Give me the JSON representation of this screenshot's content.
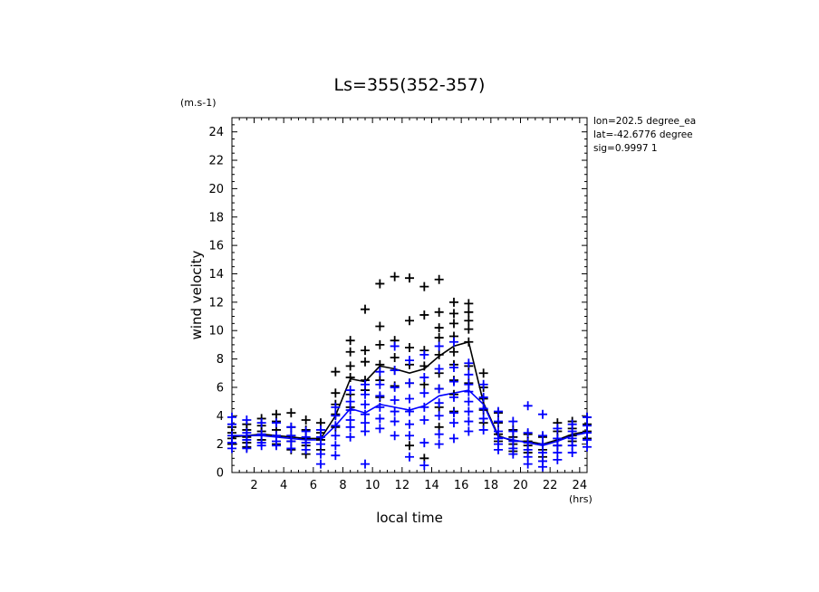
{
  "chart_data": {
    "type": "scatter",
    "title": "Ls=355(352-357)",
    "xlabel": "local time",
    "ylabel": "wind velocity",
    "x_unit": "(hrs)",
    "y_unit": "(m.s-1)",
    "xlim": [
      0.5,
      24.5
    ],
    "ylim": [
      0,
      25
    ],
    "x_ticks": [
      2,
      4,
      6,
      8,
      10,
      12,
      14,
      16,
      18,
      20,
      22,
      24
    ],
    "y_ticks": [
      0,
      2,
      4,
      6,
      8,
      10,
      12,
      14,
      16,
      18,
      20,
      22,
      24
    ],
    "info_lines": [
      "lon=202.5 degree_ea",
      "lat=-42.6776 degree",
      "sig=0.9997 1"
    ],
    "series": [
      {
        "color": "#000000",
        "role": "scatter",
        "points": [
          [
            0.5,
            3.2
          ],
          [
            0.5,
            2.8
          ],
          [
            0.5,
            2.4
          ],
          [
            0.5,
            2.0
          ],
          [
            1.5,
            3.4
          ],
          [
            1.5,
            3.0
          ],
          [
            1.5,
            2.5
          ],
          [
            1.5,
            2.1
          ],
          [
            1.5,
            1.8
          ],
          [
            2.5,
            3.8
          ],
          [
            2.5,
            3.3
          ],
          [
            2.5,
            2.9
          ],
          [
            2.5,
            2.3
          ],
          [
            3.5,
            4.1
          ],
          [
            3.5,
            3.6
          ],
          [
            3.5,
            3.0
          ],
          [
            3.5,
            2.6
          ],
          [
            3.5,
            2.0
          ],
          [
            4.5,
            4.2
          ],
          [
            4.5,
            3.2
          ],
          [
            4.5,
            2.6
          ],
          [
            4.5,
            2.2
          ],
          [
            4.5,
            1.6
          ],
          [
            5.5,
            3.7
          ],
          [
            5.5,
            3.0
          ],
          [
            5.5,
            2.4
          ],
          [
            5.5,
            1.9
          ],
          [
            5.5,
            1.3
          ],
          [
            6.5,
            3.5
          ],
          [
            6.5,
            2.8
          ],
          [
            6.5,
            2.3
          ],
          [
            6.5,
            1.6
          ],
          [
            7.5,
            7.1
          ],
          [
            7.5,
            5.6
          ],
          [
            7.5,
            4.8
          ],
          [
            7.5,
            4.1
          ],
          [
            7.5,
            3.2
          ],
          [
            8.5,
            9.3
          ],
          [
            8.5,
            8.5
          ],
          [
            8.5,
            7.5
          ],
          [
            8.5,
            6.7
          ],
          [
            8.5,
            5.5
          ],
          [
            8.5,
            4.6
          ],
          [
            9.5,
            11.5
          ],
          [
            9.5,
            8.6
          ],
          [
            9.5,
            7.8
          ],
          [
            9.5,
            6.5
          ],
          [
            9.5,
            5.8
          ],
          [
            10.5,
            13.3
          ],
          [
            10.5,
            10.3
          ],
          [
            10.5,
            9.0
          ],
          [
            10.5,
            7.6
          ],
          [
            10.5,
            6.5
          ],
          [
            10.5,
            5.3
          ],
          [
            11.5,
            13.8
          ],
          [
            11.5,
            9.3
          ],
          [
            11.5,
            8.1
          ],
          [
            11.5,
            7.2
          ],
          [
            11.5,
            6.1
          ],
          [
            12.5,
            13.7
          ],
          [
            12.5,
            10.7
          ],
          [
            12.5,
            8.8
          ],
          [
            12.5,
            7.6
          ],
          [
            12.5,
            6.3
          ],
          [
            12.5,
            1.9
          ],
          [
            13.5,
            13.1
          ],
          [
            13.5,
            11.1
          ],
          [
            13.5,
            8.6
          ],
          [
            13.5,
            7.5
          ],
          [
            13.5,
            6.2
          ],
          [
            13.5,
            1.0
          ],
          [
            14.5,
            13.6
          ],
          [
            14.5,
            11.3
          ],
          [
            14.5,
            10.2
          ],
          [
            14.5,
            9.5
          ],
          [
            14.5,
            8.3
          ],
          [
            14.5,
            7.0
          ],
          [
            14.5,
            5.9
          ],
          [
            14.5,
            4.6
          ],
          [
            14.5,
            3.2
          ],
          [
            15.5,
            12.0
          ],
          [
            15.5,
            11.2
          ],
          [
            15.5,
            10.5
          ],
          [
            15.5,
            9.6
          ],
          [
            15.5,
            8.5
          ],
          [
            15.5,
            7.6
          ],
          [
            15.5,
            6.5
          ],
          [
            15.5,
            5.5
          ],
          [
            15.5,
            4.3
          ],
          [
            16.5,
            11.9
          ],
          [
            16.5,
            11.3
          ],
          [
            16.5,
            10.7
          ],
          [
            16.5,
            10.1
          ],
          [
            16.5,
            9.2
          ],
          [
            16.5,
            7.5
          ],
          [
            16.5,
            6.3
          ],
          [
            17.5,
            7.0
          ],
          [
            17.5,
            6.0
          ],
          [
            17.5,
            5.2
          ],
          [
            17.5,
            4.4
          ],
          [
            17.5,
            3.5
          ],
          [
            18.5,
            4.2
          ],
          [
            18.5,
            3.5
          ],
          [
            18.5,
            2.7
          ],
          [
            18.5,
            2.2
          ],
          [
            19.5,
            3.0
          ],
          [
            19.5,
            2.5
          ],
          [
            19.5,
            2.0
          ],
          [
            19.5,
            1.5
          ],
          [
            20.5,
            2.7
          ],
          [
            20.5,
            2.2
          ],
          [
            20.5,
            1.9
          ],
          [
            20.5,
            1.4
          ],
          [
            21.5,
            2.5
          ],
          [
            21.5,
            2.0
          ],
          [
            21.5,
            1.6
          ],
          [
            21.5,
            1.1
          ],
          [
            22.5,
            3.5
          ],
          [
            22.5,
            2.9
          ],
          [
            22.5,
            2.4
          ],
          [
            22.5,
            1.9
          ],
          [
            23.5,
            3.6
          ],
          [
            23.5,
            3.1
          ],
          [
            23.5,
            2.6
          ],
          [
            23.5,
            2.2
          ],
          [
            24.5,
            3.9
          ],
          [
            24.5,
            3.4
          ],
          [
            24.5,
            2.9
          ],
          [
            24.5,
            2.4
          ]
        ]
      },
      {
        "color": "#0000ff",
        "role": "scatter",
        "points": [
          [
            0.5,
            3.9
          ],
          [
            0.5,
            3.4
          ],
          [
            0.5,
            2.6
          ],
          [
            0.5,
            2.1
          ],
          [
            0.5,
            1.7
          ],
          [
            1.5,
            3.7
          ],
          [
            1.5,
            2.8
          ],
          [
            1.5,
            2.3
          ],
          [
            1.5,
            1.7
          ],
          [
            2.5,
            3.5
          ],
          [
            2.5,
            2.7
          ],
          [
            2.5,
            2.1
          ],
          [
            2.5,
            1.9
          ],
          [
            3.5,
            3.5
          ],
          [
            3.5,
            2.6
          ],
          [
            3.5,
            2.2
          ],
          [
            3.5,
            1.9
          ],
          [
            4.5,
            3.2
          ],
          [
            4.5,
            2.6
          ],
          [
            4.5,
            2.2
          ],
          [
            4.5,
            1.7
          ],
          [
            5.5,
            2.9
          ],
          [
            5.5,
            2.5
          ],
          [
            5.5,
            2.1
          ],
          [
            5.5,
            1.6
          ],
          [
            6.5,
            3.0
          ],
          [
            6.5,
            2.5
          ],
          [
            6.5,
            2.0
          ],
          [
            6.5,
            1.3
          ],
          [
            6.5,
            0.6
          ],
          [
            7.5,
            4.6
          ],
          [
            7.5,
            4.0
          ],
          [
            7.5,
            3.3
          ],
          [
            7.5,
            2.6
          ],
          [
            7.5,
            1.9
          ],
          [
            7.5,
            1.2
          ],
          [
            8.5,
            5.8
          ],
          [
            8.5,
            5.0
          ],
          [
            8.5,
            4.4
          ],
          [
            8.5,
            3.7
          ],
          [
            8.5,
            3.2
          ],
          [
            8.5,
            2.5
          ],
          [
            9.5,
            6.2
          ],
          [
            9.5,
            5.5
          ],
          [
            9.5,
            4.8
          ],
          [
            9.5,
            4.1
          ],
          [
            9.5,
            3.5
          ],
          [
            9.5,
            2.9
          ],
          [
            9.5,
            0.6
          ],
          [
            10.5,
            7.1
          ],
          [
            10.5,
            6.2
          ],
          [
            10.5,
            5.4
          ],
          [
            10.5,
            4.6
          ],
          [
            10.5,
            3.8
          ],
          [
            10.5,
            3.1
          ],
          [
            11.5,
            8.9
          ],
          [
            11.5,
            7.2
          ],
          [
            11.5,
            6.0
          ],
          [
            11.5,
            5.1
          ],
          [
            11.5,
            4.3
          ],
          [
            11.5,
            3.6
          ],
          [
            11.5,
            2.6
          ],
          [
            12.5,
            7.9
          ],
          [
            12.5,
            6.3
          ],
          [
            12.5,
            5.2
          ],
          [
            12.5,
            4.3
          ],
          [
            12.5,
            3.4
          ],
          [
            12.5,
            2.6
          ],
          [
            12.5,
            1.1
          ],
          [
            13.5,
            8.3
          ],
          [
            13.5,
            6.7
          ],
          [
            13.5,
            5.6
          ],
          [
            13.5,
            4.6
          ],
          [
            13.5,
            3.7
          ],
          [
            13.5,
            2.1
          ],
          [
            13.5,
            0.5
          ],
          [
            14.5,
            8.9
          ],
          [
            14.5,
            7.3
          ],
          [
            14.5,
            5.9
          ],
          [
            14.5,
            4.9
          ],
          [
            14.5,
            4.0
          ],
          [
            14.5,
            2.7
          ],
          [
            14.5,
            2.0
          ],
          [
            15.5,
            9.2
          ],
          [
            15.5,
            7.4
          ],
          [
            15.5,
            6.4
          ],
          [
            15.5,
            5.3
          ],
          [
            15.5,
            4.2
          ],
          [
            15.5,
            3.5
          ],
          [
            15.5,
            2.4
          ],
          [
            16.5,
            7.7
          ],
          [
            16.5,
            6.9
          ],
          [
            16.5,
            6.2
          ],
          [
            16.5,
            5.7
          ],
          [
            16.5,
            5.0
          ],
          [
            16.5,
            4.3
          ],
          [
            16.5,
            3.6
          ],
          [
            16.5,
            2.9
          ],
          [
            17.5,
            6.2
          ],
          [
            17.5,
            5.3
          ],
          [
            17.5,
            4.5
          ],
          [
            17.5,
            3.8
          ],
          [
            17.5,
            3.0
          ],
          [
            18.5,
            4.3
          ],
          [
            18.5,
            3.6
          ],
          [
            18.5,
            2.9
          ],
          [
            18.5,
            2.4
          ],
          [
            18.5,
            2.0
          ],
          [
            18.5,
            1.6
          ],
          [
            19.5,
            3.6
          ],
          [
            19.5,
            2.9
          ],
          [
            19.5,
            2.2
          ],
          [
            19.5,
            1.7
          ],
          [
            19.5,
            1.3
          ],
          [
            20.5,
            4.7
          ],
          [
            20.5,
            2.8
          ],
          [
            20.5,
            2.1
          ],
          [
            20.5,
            1.6
          ],
          [
            20.5,
            1.1
          ],
          [
            20.5,
            0.6
          ],
          [
            21.5,
            4.1
          ],
          [
            21.5,
            2.6
          ],
          [
            21.5,
            2.0
          ],
          [
            21.5,
            1.4
          ],
          [
            21.5,
            0.8
          ],
          [
            21.5,
            0.4
          ],
          [
            22.5,
            3.1
          ],
          [
            22.5,
            2.4
          ],
          [
            22.5,
            1.9
          ],
          [
            22.5,
            1.4
          ],
          [
            22.5,
            0.9
          ],
          [
            23.5,
            3.4
          ],
          [
            23.5,
            2.9
          ],
          [
            23.5,
            2.4
          ],
          [
            23.5,
            1.9
          ],
          [
            23.5,
            1.4
          ],
          [
            24.5,
            3.9
          ],
          [
            24.5,
            3.3
          ],
          [
            24.5,
            2.8
          ],
          [
            24.5,
            2.3
          ],
          [
            24.5,
            1.8
          ]
        ]
      },
      {
        "color": "#000000",
        "role": "mean-line",
        "points": [
          [
            0.5,
            2.5
          ],
          [
            1.5,
            2.6
          ],
          [
            2.5,
            2.7
          ],
          [
            3.5,
            2.6
          ],
          [
            4.5,
            2.5
          ],
          [
            5.5,
            2.4
          ],
          [
            6.5,
            2.4
          ],
          [
            7.5,
            4.0
          ],
          [
            8.5,
            6.6
          ],
          [
            9.5,
            6.4
          ],
          [
            10.5,
            7.5
          ],
          [
            11.5,
            7.3
          ],
          [
            12.5,
            7.0
          ],
          [
            13.5,
            7.3
          ],
          [
            14.5,
            8.2
          ],
          [
            15.5,
            8.9
          ],
          [
            16.5,
            9.2
          ],
          [
            17.5,
            4.9
          ],
          [
            18.5,
            2.6
          ],
          [
            19.5,
            2.2
          ],
          [
            20.5,
            2.2
          ],
          [
            21.5,
            2.0
          ],
          [
            22.5,
            2.3
          ],
          [
            23.5,
            2.7
          ],
          [
            24.5,
            2.9
          ]
        ]
      },
      {
        "color": "#0000ff",
        "role": "mean-line",
        "points": [
          [
            0.5,
            2.6
          ],
          [
            1.5,
            2.6
          ],
          [
            2.5,
            2.6
          ],
          [
            3.5,
            2.5
          ],
          [
            4.5,
            2.4
          ],
          [
            5.5,
            2.3
          ],
          [
            6.5,
            2.3
          ],
          [
            7.5,
            3.3
          ],
          [
            8.5,
            4.5
          ],
          [
            9.5,
            4.2
          ],
          [
            10.5,
            4.8
          ],
          [
            11.5,
            4.6
          ],
          [
            12.5,
            4.4
          ],
          [
            13.5,
            4.7
          ],
          [
            14.5,
            5.4
          ],
          [
            15.5,
            5.6
          ],
          [
            16.5,
            5.8
          ],
          [
            17.5,
            4.8
          ],
          [
            18.5,
            2.5
          ],
          [
            19.5,
            2.3
          ],
          [
            20.5,
            2.1
          ],
          [
            21.5,
            1.9
          ],
          [
            22.5,
            2.2
          ],
          [
            23.5,
            2.6
          ],
          [
            24.5,
            2.8
          ]
        ]
      }
    ]
  }
}
